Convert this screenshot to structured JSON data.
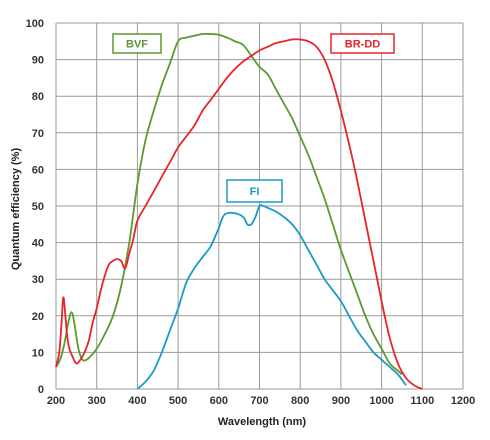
{
  "chart_data": {
    "type": "line",
    "title": "",
    "xlabel": "Wavelength (nm)",
    "ylabel": "Quantum efficiency (%)",
    "xlim": [
      200,
      1200
    ],
    "ylim": [
      0,
      100
    ],
    "x_ticks": [
      "200",
      "300",
      "400",
      "500",
      "600",
      "700",
      "800",
      "900",
      "1000",
      "1100",
      "1200"
    ],
    "y_ticks": [
      "0",
      "10",
      "20",
      "30",
      "40",
      "50",
      "60",
      "70",
      "80",
      "90",
      "100"
    ],
    "grid": true,
    "series": [
      {
        "name": "BVF",
        "color": "#5a9a2e",
        "x": [
          200,
          210,
          220,
          230,
          238,
          245,
          255,
          265,
          275,
          285,
          300,
          320,
          340,
          360,
          380,
          400,
          420,
          440,
          460,
          480,
          500,
          520,
          540,
          560,
          580,
          600,
          620,
          640,
          660,
          680,
          700,
          720,
          740,
          760,
          780,
          800,
          820,
          840,
          860,
          880,
          900,
          920,
          940,
          960,
          980,
          1000,
          1020,
          1040,
          1050
        ],
        "y": [
          6,
          8,
          12,
          18,
          21,
          18,
          11,
          8,
          8,
          9,
          11,
          15,
          20,
          28,
          40,
          56,
          68,
          76,
          83,
          89,
          95,
          96,
          96.5,
          97,
          97,
          96.8,
          96,
          95,
          94,
          91,
          88,
          86,
          82,
          78,
          74,
          69,
          64,
          58,
          52,
          45,
          38,
          32,
          26,
          20,
          15,
          11,
          7,
          5,
          4
        ]
      },
      {
        "name": "BR-DD",
        "color": "#e8232a",
        "x": [
          200,
          208,
          213,
          218,
          223,
          228,
          233,
          240,
          250,
          260,
          270,
          280,
          290,
          300,
          310,
          320,
          330,
          340,
          350,
          360,
          370,
          380,
          390,
          400,
          420,
          440,
          460,
          480,
          500,
          520,
          540,
          560,
          580,
          600,
          620,
          640,
          660,
          680,
          700,
          720,
          740,
          760,
          780,
          800,
          820,
          840,
          860,
          880,
          900,
          920,
          940,
          960,
          980,
          1000,
          1020,
          1040,
          1060,
          1080,
          1100
        ],
        "y": [
          6,
          10,
          17,
          25,
          20,
          14,
          11,
          9,
          7,
          8,
          10,
          13,
          18,
          22,
          27,
          31,
          34,
          35,
          35.5,
          35,
          33,
          37,
          41,
          46,
          50,
          54,
          58,
          62,
          66,
          69,
          72,
          76,
          79,
          82,
          85,
          87.5,
          89.5,
          91,
          92.5,
          93.5,
          94.5,
          95,
          95.5,
          95.5,
          95,
          93.5,
          90,
          84,
          76,
          67,
          57,
          46,
          35,
          24,
          14,
          7,
          3,
          1,
          0
        ]
      },
      {
        "name": "FI",
        "color": "#1a9bc7",
        "x": [
          400,
          420,
          440,
          460,
          480,
          500,
          520,
          540,
          560,
          580,
          600,
          610,
          620,
          640,
          660,
          670,
          680,
          690,
          700,
          710,
          720,
          740,
          760,
          780,
          800,
          820,
          840,
          860,
          880,
          900,
          920,
          940,
          960,
          980,
          1000,
          1020,
          1040,
          1060
        ],
        "y": [
          0,
          2,
          5,
          10,
          16,
          22,
          29,
          33,
          36,
          39,
          44,
          47,
          48,
          48,
          47,
          45,
          45,
          47,
          50,
          50,
          49.5,
          48.5,
          47,
          45,
          42,
          38,
          34,
          30,
          27,
          24,
          20,
          16,
          13,
          10,
          8,
          6,
          4,
          1
        ]
      }
    ],
    "legend_boxes": [
      {
        "label": "BVF",
        "color": "#5a9a2e"
      },
      {
        "label": "BR-DD",
        "color": "#e8232a"
      },
      {
        "label": "FI",
        "color": "#1a9bc7"
      }
    ]
  }
}
